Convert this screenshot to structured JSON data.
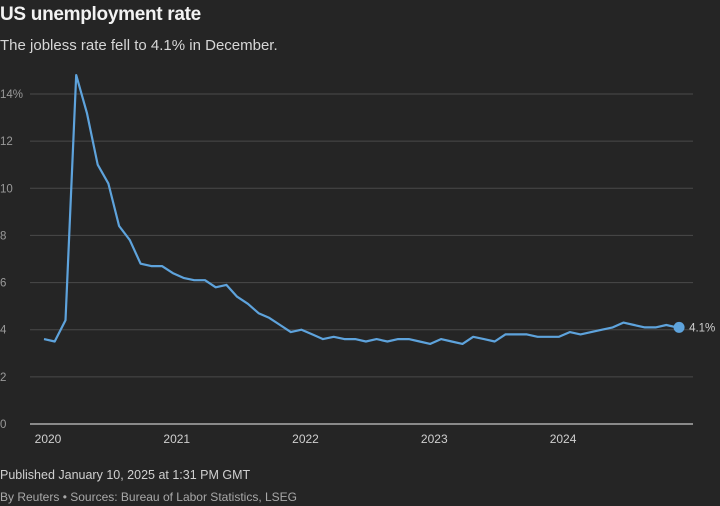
{
  "title": "US unemployment rate",
  "subtitle": "The jobless rate fell to 4.1% in December.",
  "footer": {
    "published": "Published January 10, 2025 at 1:31 PM GMT",
    "source": "By Reuters • Sources: Bureau of Labor Statistics, LSEG"
  },
  "colors": {
    "background": "#252525",
    "line": "#5ea3dc",
    "grid": "#4a4a4a"
  },
  "chart_data": {
    "type": "line",
    "title": "US unemployment rate",
    "xlabel": "",
    "ylabel": "",
    "ylim": [
      0,
      14
    ],
    "yticks": [
      0,
      2,
      4,
      6,
      8,
      10,
      12,
      14
    ],
    "ytick_labels": [
      "0",
      "2",
      "4",
      "6",
      "8",
      "10",
      "12",
      "14%"
    ],
    "xtick_labels": [
      "2020",
      "2021",
      "2022",
      "2023",
      "2024"
    ],
    "x_start": "2020-01",
    "x_frequency": "monthly",
    "grid": true,
    "end_label": "4.1%",
    "values": [
      3.6,
      3.5,
      4.4,
      14.8,
      13.2,
      11.0,
      10.2,
      8.4,
      7.8,
      6.8,
      6.7,
      6.7,
      6.4,
      6.2,
      6.1,
      6.1,
      5.8,
      5.9,
      5.4,
      5.1,
      4.7,
      4.5,
      4.2,
      3.9,
      4.0,
      3.8,
      3.6,
      3.7,
      3.6,
      3.6,
      3.5,
      3.6,
      3.5,
      3.6,
      3.6,
      3.5,
      3.4,
      3.6,
      3.5,
      3.4,
      3.7,
      3.6,
      3.5,
      3.8,
      3.8,
      3.8,
      3.7,
      3.7,
      3.7,
      3.9,
      3.8,
      3.9,
      4.0,
      4.1,
      4.3,
      4.2,
      4.1,
      4.1,
      4.2,
      4.1
    ]
  }
}
